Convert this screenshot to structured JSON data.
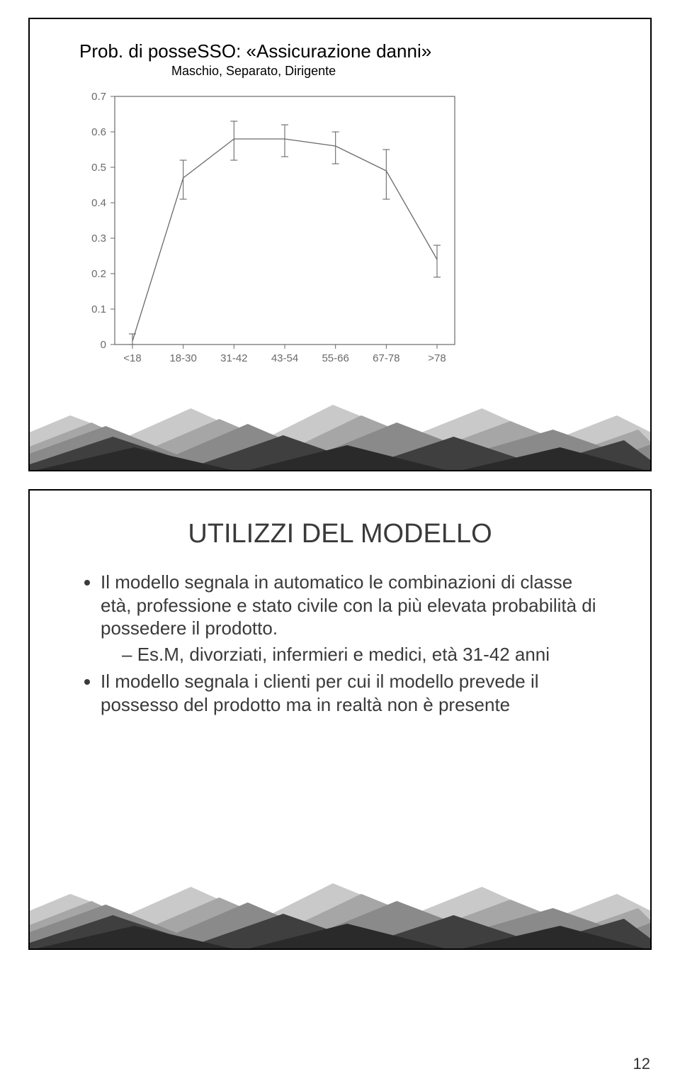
{
  "slide1": {
    "title": "Prob. di posseSSO: «Assicurazione danni»",
    "subtitle": "Maschio, Separato, Dirigente",
    "chart": {
      "x_categories": [
        "<18",
        "18-30",
        "31-42",
        "43-54",
        "55-66",
        "67-78",
        ">78"
      ],
      "y_ticks": [
        0,
        0.1,
        0.2,
        0.3,
        0.4,
        0.5,
        0.6,
        0.7
      ],
      "y_tick_labels": [
        "0",
        "0.1",
        "0.2",
        "0.3",
        "0.4",
        "0.5",
        "0.6",
        "0.7"
      ],
      "ylim": [
        0,
        0.7
      ],
      "values": [
        0.01,
        0.47,
        0.58,
        0.58,
        0.56,
        0.49,
        0.24
      ],
      "err_lo": [
        0.0,
        0.41,
        0.52,
        0.53,
        0.51,
        0.41,
        0.19
      ],
      "err_hi": [
        0.03,
        0.52,
        0.63,
        0.62,
        0.6,
        0.55,
        0.28
      ],
      "line_color": "#6a6a6a",
      "line_width": 1.3,
      "tick_color": "#6a6a6a",
      "border_color": "#6a6a6a",
      "label_fontsize": 15,
      "label_color": "#6a6a6a"
    }
  },
  "slide2": {
    "title": "UTILIZZI DEL MODELLO",
    "bullet1": "Il modello segnala in automatico le combinazioni di classe età, professione e stato civile con la più elevata probabilità di possedere il prodotto.",
    "bullet1_sub": "Es.M, divorziati, infermieri e medici, età 31-42 anni",
    "bullet2": "Il modello segnala i clienti per cui il modello prevede il possesso del prodotto ma in realtà non è presente"
  },
  "page_number": "12",
  "mountain_colors": {
    "far": "#c9c9c9",
    "mid": "#8a8a8a",
    "mid2": "#a6a6a6",
    "near": "#3f3f3f",
    "near2": "#2a2a2a"
  }
}
